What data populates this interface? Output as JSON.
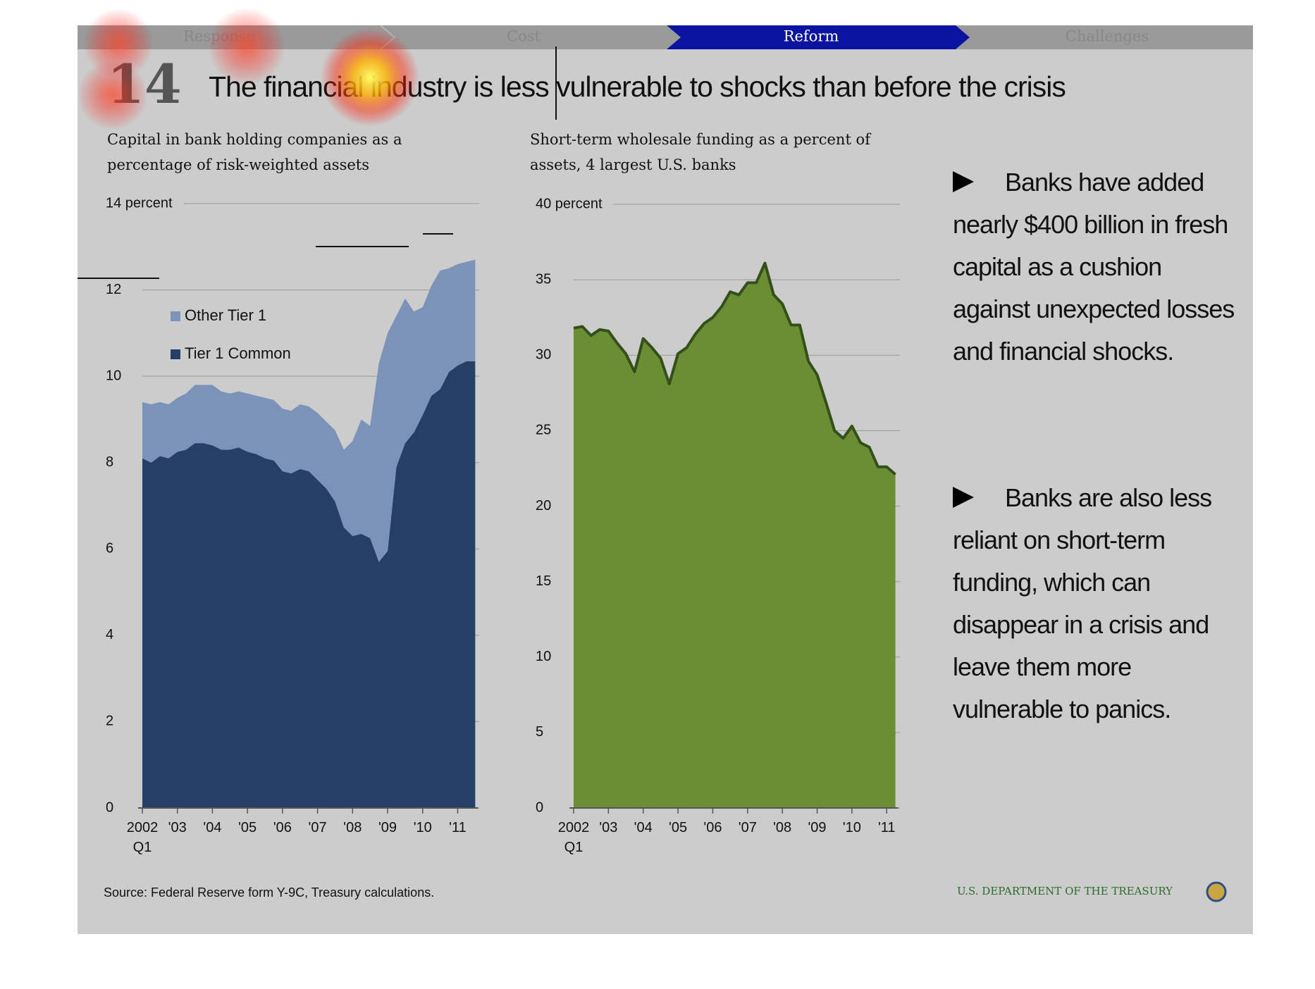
{
  "nav": [
    "Response",
    "Cost",
    "Reform",
    "Challenges"
  ],
  "slide_number": "14",
  "title": "The financial industry is less vulnerable to shocks than before the crisis",
  "chart_data": [
    {
      "type": "area",
      "stacked": true,
      "title": "Capital in bank holding companies as a percentage of risk-weighted assets",
      "categories": [
        "2002 Q1",
        null,
        null,
        null,
        "'03",
        null,
        null,
        null,
        "'04",
        null,
        null,
        null,
        "'05",
        null,
        null,
        null,
        "'06",
        null,
        null,
        null,
        "'07",
        null,
        null,
        null,
        "'08",
        null,
        null,
        null,
        "'09",
        null,
        null,
        null,
        "'10",
        null,
        null,
        null,
        "'11",
        null,
        null
      ],
      "series": [
        {
          "name": "Tier 1 Common",
          "color": "#253f66",
          "values": [
            8.1,
            8.0,
            8.15,
            8.1,
            8.25,
            8.3,
            8.45,
            8.45,
            8.4,
            8.3,
            8.3,
            8.35,
            8.25,
            8.2,
            8.1,
            8.05,
            7.8,
            7.75,
            7.85,
            7.8,
            7.6,
            7.4,
            7.1,
            6.5,
            6.3,
            6.35,
            6.25,
            5.7,
            5.95,
            7.9,
            8.45,
            8.7,
            9.1,
            9.55,
            9.7,
            10.1,
            10.25,
            10.35,
            10.35
          ]
        },
        {
          "name": "Other Tier 1",
          "color": "#7b93b8",
          "values": [
            1.3,
            1.35,
            1.25,
            1.25,
            1.25,
            1.3,
            1.35,
            1.35,
            1.4,
            1.35,
            1.3,
            1.3,
            1.35,
            1.35,
            1.4,
            1.4,
            1.45,
            1.45,
            1.5,
            1.5,
            1.55,
            1.55,
            1.65,
            1.8,
            2.2,
            2.65,
            2.6,
            4.6,
            5.05,
            3.5,
            3.35,
            2.8,
            2.5,
            2.55,
            2.75,
            2.4,
            2.35,
            2.3,
            2.35
          ]
        }
      ],
      "ylim": [
        0,
        14
      ],
      "yticks": [
        0,
        2,
        4,
        6,
        8,
        10,
        12,
        {
          "value": 14,
          "label": "14 percent"
        }
      ],
      "grid": true,
      "legend": "upper left"
    },
    {
      "type": "area",
      "title": "Short-term wholesale funding as a percent of assets, 4 largest U.S. banks",
      "categories": [
        "2002 Q1",
        null,
        null,
        null,
        "'03",
        null,
        null,
        null,
        "'04",
        null,
        null,
        null,
        "'05",
        null,
        null,
        null,
        "'06",
        null,
        null,
        null,
        "'07",
        null,
        null,
        null,
        "'08",
        null,
        null,
        null,
        "'09",
        null,
        null,
        null,
        "'10",
        null,
        null,
        null,
        "'11",
        null
      ],
      "values": [
        31.8,
        31.9,
        31.3,
        31.7,
        31.6,
        30.8,
        30.1,
        28.9,
        31.1,
        30.5,
        29.8,
        28.1,
        30.1,
        30.5,
        31.4,
        32.1,
        32.5,
        33.2,
        34.2,
        34.0,
        34.8,
        34.8,
        36.1,
        34.0,
        33.4,
        32.0,
        32.0,
        29.6,
        28.7,
        26.9,
        25.0,
        24.5,
        25.3,
        24.2,
        23.9,
        22.6,
        22.6,
        22.1
      ],
      "color": "#6b8e35",
      "line_color": "#33501a",
      "ylim": [
        0,
        40
      ],
      "yticks": [
        0,
        5,
        10,
        15,
        20,
        25,
        30,
        35,
        {
          "value": 40,
          "label": "40 percent"
        }
      ],
      "grid": true
    }
  ],
  "bullets": [
    "Banks have added nearly  $400 billion in fresh capital as a cushion against unexpected losses and financial shocks.",
    "Banks are also less reliant on short-term funding, which can disappear in a crisis and leave them more vulnerable to panics."
  ],
  "source": "Source: Federal Reserve form Y-9C, Treasury calculations.",
  "footer": "U.S. DEPARTMENT OF THE TREASURY"
}
